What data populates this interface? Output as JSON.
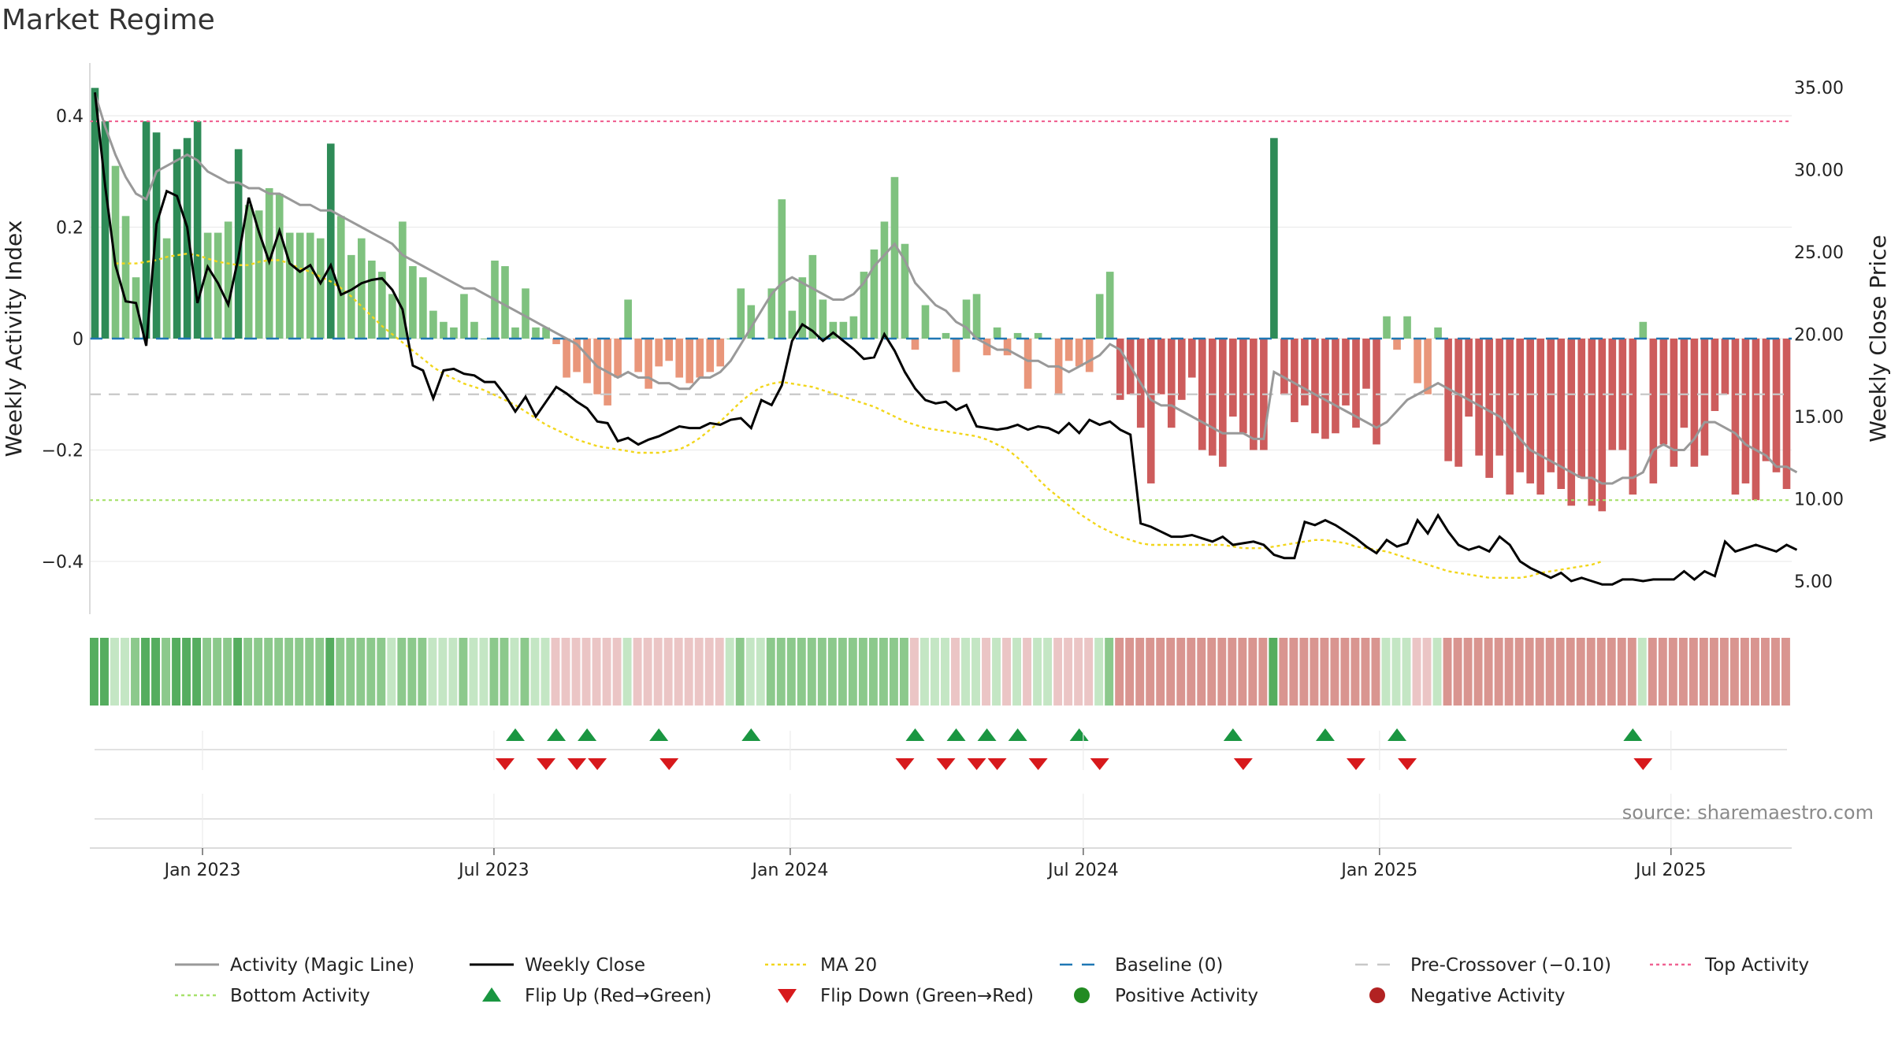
{
  "chart_data": {
    "type": "bar",
    "title": "Market Regime",
    "source": "source: sharemaestro.com",
    "ylabel_left": "Weekly Activity Index",
    "ylabel_right": "Weekly Close Price",
    "x_start": "2022-10-23",
    "x_end": "2025-09-14",
    "x_ticks": [
      {
        "date": "2023-01-01",
        "label": "Jan 2023"
      },
      {
        "date": "2023-07-01",
        "label": "Jul 2023"
      },
      {
        "date": "2024-01-01",
        "label": "Jan 2024"
      },
      {
        "date": "2024-07-01",
        "label": "Jul 2024"
      },
      {
        "date": "2025-01-01",
        "label": "Jan 2025"
      },
      {
        "date": "2025-07-01",
        "label": "Jul 2025"
      }
    ],
    "ylim_left": [
      -0.5,
      0.5
    ],
    "yticks_left": [
      {
        "v": 0.4,
        "label": "0.4"
      },
      {
        "v": 0.2,
        "label": "0.2"
      },
      {
        "v": 0,
        "label": "0"
      },
      {
        "v": -0.2,
        "label": "−0.2"
      },
      {
        "v": -0.4,
        "label": "−0.4"
      }
    ],
    "ylim_right": [
      3.0,
      36.5
    ],
    "yticks_right": [
      {
        "v": 35,
        "label": "35.00"
      },
      {
        "v": 30,
        "label": "30.00"
      },
      {
        "v": 25,
        "label": "25.00"
      },
      {
        "v": 20,
        "label": "20.00"
      },
      {
        "v": 15,
        "label": "15.00"
      },
      {
        "v": 10,
        "label": "10.00"
      },
      {
        "v": 5,
        "label": "5.00"
      }
    ],
    "reference_lines": {
      "baseline": 0,
      "pre_crossover": -0.1,
      "top_activity": 0.39,
      "bottom_activity": -0.29
    },
    "activity_index": [
      0.45,
      0.39,
      0.31,
      0.22,
      0.11,
      0.39,
      0.37,
      0.18,
      0.34,
      0.36,
      0.39,
      0.19,
      0.19,
      0.21,
      0.34,
      0.24,
      0.23,
      0.27,
      0.26,
      0.19,
      0.19,
      0.19,
      0.18,
      0.35,
      0.22,
      0.15,
      0.18,
      0.14,
      0.12,
      0.08,
      0.21,
      0.13,
      0.11,
      0.05,
      0.03,
      0.02,
      0.08,
      0.03,
      0.0,
      0.14,
      0.13,
      0.02,
      0.09,
      0.02,
      0.02,
      -0.01,
      -0.07,
      -0.06,
      -0.08,
      -0.1,
      -0.12,
      -0.07,
      0.07,
      -0.06,
      -0.09,
      -0.05,
      -0.04,
      -0.07,
      -0.08,
      -0.07,
      -0.06,
      -0.05,
      0.0,
      0.09,
      0.06,
      0.0,
      0.09,
      0.25,
      0.05,
      0.11,
      0.15,
      0.07,
      0.03,
      0.03,
      0.04,
      0.12,
      0.16,
      0.21,
      0.29,
      0.17,
      -0.02,
      0.06,
      0.0,
      0.01,
      -0.06,
      0.07,
      0.08,
      -0.03,
      0.02,
      -0.03,
      0.01,
      -0.09,
      0.01,
      0.0,
      -0.1,
      -0.04,
      -0.05,
      -0.06,
      0.08,
      0.12,
      -0.11,
      -0.1,
      -0.16,
      -0.26,
      -0.1,
      -0.16,
      -0.11,
      -0.07,
      -0.2,
      -0.21,
      -0.23,
      -0.14,
      -0.17,
      -0.2,
      -0.2,
      0.36,
      -0.1,
      -0.15,
      -0.12,
      -0.17,
      -0.18,
      -0.17,
      -0.12,
      -0.16,
      -0.09,
      -0.19,
      0.04,
      -0.02,
      0.04,
      -0.08,
      -0.1,
      0.02,
      -0.22,
      -0.23,
      -0.14,
      -0.21,
      -0.25,
      -0.21,
      -0.28,
      -0.24,
      -0.26,
      -0.28,
      -0.24,
      -0.27,
      -0.3,
      -0.25,
      -0.3,
      -0.31,
      -0.2,
      -0.2,
      -0.28,
      0.03,
      -0.26,
      -0.19,
      -0.23,
      -0.16,
      -0.23,
      -0.21,
      -0.13,
      -0.1,
      -0.28,
      -0.26,
      -0.29,
      -0.22,
      -0.24,
      -0.27
    ],
    "magic_line": [
      0.44,
      0.38,
      0.33,
      0.29,
      0.26,
      0.25,
      0.3,
      0.31,
      0.32,
      0.33,
      0.32,
      0.3,
      0.29,
      0.28,
      0.28,
      0.27,
      0.27,
      0.26,
      0.26,
      0.25,
      0.24,
      0.24,
      0.23,
      0.23,
      0.22,
      0.21,
      0.2,
      0.19,
      0.18,
      0.17,
      0.15,
      0.14,
      0.13,
      0.12,
      0.11,
      0.1,
      0.09,
      0.09,
      0.08,
      0.07,
      0.06,
      0.05,
      0.04,
      0.03,
      0.02,
      0.01,
      0.0,
      -0.01,
      -0.03,
      -0.05,
      -0.06,
      -0.07,
      -0.06,
      -0.07,
      -0.07,
      -0.08,
      -0.08,
      -0.09,
      -0.09,
      -0.07,
      -0.07,
      -0.06,
      -0.04,
      -0.01,
      0.02,
      0.05,
      0.08,
      0.1,
      0.11,
      0.1,
      0.09,
      0.08,
      0.07,
      0.07,
      0.08,
      0.1,
      0.13,
      0.15,
      0.17,
      0.14,
      0.1,
      0.08,
      0.06,
      0.05,
      0.03,
      0.02,
      0.0,
      -0.01,
      -0.02,
      -0.02,
      -0.03,
      -0.04,
      -0.04,
      -0.05,
      -0.05,
      -0.06,
      -0.05,
      -0.04,
      -0.03,
      -0.01,
      -0.02,
      -0.05,
      -0.08,
      -0.11,
      -0.12,
      -0.12,
      -0.13,
      -0.14,
      -0.15,
      -0.16,
      -0.17,
      -0.17,
      -0.17,
      -0.18,
      -0.18,
      -0.06,
      -0.07,
      -0.08,
      -0.09,
      -0.1,
      -0.11,
      -0.12,
      -0.13,
      -0.14,
      -0.15,
      -0.16,
      -0.15,
      -0.13,
      -0.11,
      -0.1,
      -0.09,
      -0.08,
      -0.09,
      -0.1,
      -0.11,
      -0.12,
      -0.13,
      -0.14,
      -0.16,
      -0.18,
      -0.2,
      -0.21,
      -0.22,
      -0.23,
      -0.24,
      -0.25,
      -0.25,
      -0.26,
      -0.26,
      -0.25,
      -0.25,
      -0.24,
      -0.2,
      -0.19,
      -0.2,
      -0.2,
      -0.18,
      -0.15,
      -0.15,
      -0.16,
      -0.17,
      -0.19,
      -0.2,
      -0.21,
      -0.23,
      -0.23,
      -0.24
    ],
    "weekly_close": [
      34.7,
      29.0,
      24.2,
      22.0,
      21.9,
      19.3,
      26.7,
      28.7,
      28.4,
      26.5,
      21.9,
      24.1,
      23.1,
      21.8,
      24.7,
      28.3,
      26.2,
      24.4,
      26.3,
      24.3,
      23.8,
      24.2,
      23.1,
      24.2,
      22.4,
      22.7,
      23.1,
      23.3,
      23.4,
      22.7,
      21.5,
      18.1,
      17.8,
      16.1,
      17.8,
      17.9,
      17.6,
      17.5,
      17.1,
      17.1,
      16.3,
      15.3,
      16.2,
      15.0,
      15.9,
      16.8,
      16.4,
      15.9,
      15.5,
      14.7,
      14.6,
      13.5,
      13.7,
      13.3,
      13.6,
      13.8,
      14.1,
      14.4,
      14.3,
      14.3,
      14.6,
      14.5,
      14.8,
      14.9,
      14.3,
      16.0,
      15.7,
      16.9,
      19.6,
      20.6,
      20.2,
      19.6,
      20.1,
      19.6,
      19.1,
      18.5,
      18.6,
      20.0,
      19.0,
      17.7,
      16.7,
      16.0,
      15.8,
      15.9,
      15.4,
      15.7,
      14.4,
      14.3,
      14.2,
      14.3,
      14.5,
      14.2,
      14.4,
      14.3,
      14.0,
      14.6,
      14.0,
      14.8,
      14.5,
      14.7,
      14.2,
      13.9,
      8.5,
      8.3,
      8.0,
      7.7,
      7.7,
      7.8,
      7.6,
      7.4,
      7.7,
      7.2,
      7.3,
      7.4,
      7.2,
      6.6,
      6.4,
      6.4,
      8.6,
      8.4,
      8.7,
      8.4,
      8.0,
      7.6,
      7.1,
      6.7,
      7.5,
      7.1,
      7.3,
      8.7,
      7.9,
      9.0,
      8.0,
      7.2,
      6.9,
      7.1,
      6.8,
      7.7,
      7.2,
      6.2,
      5.8,
      5.5,
      5.2,
      5.5,
      5.0,
      5.2,
      5.0,
      4.8,
      4.8,
      5.1,
      5.1,
      5.0,
      5.1,
      5.1,
      5.1,
      5.6,
      5.1,
      5.6,
      5.3,
      7.4,
      6.8,
      7.0,
      7.2,
      7.0,
      6.8,
      7.2,
      6.9
    ],
    "ma20_start_week": 2,
    "ma20": [
      24.3,
      24.3,
      24.3,
      24.4,
      24.5,
      24.7,
      24.8,
      24.9,
      24.8,
      24.6,
      24.4,
      24.3,
      24.2,
      24.2,
      24.4,
      24.5,
      24.5,
      24.3,
      24.0,
      23.8,
      23.5,
      23.2,
      22.8,
      22.3,
      21.7,
      21.1,
      20.5,
      20.0,
      19.5,
      19.0,
      18.5,
      18.0,
      17.6,
      17.3,
      17.0,
      16.8,
      16.6,
      16.3,
      16.0,
      15.7,
      15.3,
      14.9,
      14.5,
      14.2,
      13.9,
      13.6,
      13.4,
      13.2,
      13.1,
      13.0,
      12.9,
      12.8,
      12.8,
      12.8,
      12.9,
      13.0,
      13.3,
      13.7,
      14.2,
      14.7,
      15.3,
      15.9,
      16.4,
      16.8,
      17.0,
      17.1,
      17.0,
      16.9,
      16.8,
      16.6,
      16.4,
      16.2,
      16.0,
      15.8,
      15.6,
      15.3,
      15.0,
      14.7,
      14.5,
      14.3,
      14.2,
      14.1,
      14.0,
      13.9,
      13.8,
      13.6,
      13.3,
      13.0,
      12.5,
      11.9,
      11.2,
      10.6,
      10.1,
      9.6,
      9.1,
      8.7,
      8.3,
      8.0,
      7.7,
      7.5,
      7.3,
      7.2,
      7.2,
      7.2,
      7.2,
      7.2,
      7.2,
      7.2,
      7.2,
      7.1,
      7.0,
      7.0,
      7.0,
      7.1,
      7.2,
      7.3,
      7.4,
      7.5,
      7.5,
      7.4,
      7.3,
      7.1,
      7.0,
      6.9,
      6.8,
      6.6,
      6.4,
      6.2,
      6.0,
      5.8,
      5.6,
      5.5,
      5.4,
      5.3,
      5.2,
      5.2,
      5.2,
      5.2,
      5.3,
      5.5,
      5.6,
      5.7,
      5.8,
      5.9,
      6.0,
      6.2
    ],
    "regime_week_codes": [
      3,
      3,
      2,
      2,
      1,
      3,
      3,
      1,
      3,
      3,
      3,
      1,
      1,
      1,
      3,
      1,
      1,
      1,
      1,
      1,
      1,
      1,
      1,
      3,
      1,
      1,
      1,
      1,
      1,
      2,
      1,
      1,
      1,
      2,
      2,
      2,
      1,
      2,
      2,
      1,
      1,
      2,
      1,
      2,
      2,
      4,
      4,
      4,
      4,
      4,
      4,
      4,
      2,
      4,
      4,
      4,
      4,
      4,
      4,
      4,
      4,
      4,
      2,
      1,
      2,
      2,
      1,
      1,
      1,
      1,
      1,
      1,
      1,
      1,
      1,
      1,
      1,
      1,
      1,
      1,
      4,
      2,
      2,
      2,
      4,
      2,
      2,
      4,
      2,
      4,
      2,
      4,
      2,
      2,
      4,
      4,
      4,
      4,
      2,
      1,
      5,
      5,
      5,
      5,
      5,
      5,
      5,
      5,
      5,
      5,
      5,
      5,
      5,
      5,
      5,
      3,
      5,
      5,
      5,
      5,
      5,
      5,
      5,
      5,
      5,
      5,
      2,
      2,
      2,
      4,
      4,
      2,
      5,
      5,
      5,
      5,
      5,
      5,
      5,
      5,
      5,
      5,
      5,
      5,
      5,
      5,
      5,
      5,
      5,
      5,
      5,
      2,
      5,
      5,
      5,
      5,
      5,
      5,
      5,
      5,
      5,
      5,
      5,
      5,
      5,
      5
    ],
    "flip_up_weeks": [
      41,
      45,
      48,
      55,
      64,
      80,
      84,
      87,
      90,
      96,
      111,
      120,
      127,
      150
    ],
    "flip_down_weeks": [
      40,
      44,
      47,
      49,
      56,
      79,
      83,
      86,
      88,
      92,
      98,
      112,
      123,
      128,
      151
    ],
    "colors": {
      "dark_green": "#2e8b57",
      "light_green": "#7fc27f",
      "dark_red": "#cd5c5c",
      "light_red": "#e9967a",
      "magic_line": "#999999",
      "weekly_close": "#000000",
      "ma20": "#f2d61b",
      "baseline": "#1f77b4",
      "pre_crossover": "#c8c8c8",
      "top_activity": "#f06292",
      "bottom_activity": "#a6e16b",
      "flip_up": "#1a9641",
      "flip_down": "#d7191c",
      "positive": "#228b22",
      "negative": "#b22222"
    },
    "legend": [
      {
        "label": "Activity (Magic Line)",
        "kind": "line",
        "color": "#999999"
      },
      {
        "label": "Weekly Close",
        "kind": "line",
        "color": "#000000"
      },
      {
        "label": "MA 20",
        "kind": "dot",
        "color": "#f2d61b"
      },
      {
        "label": "Baseline (0)",
        "kind": "dash",
        "color": "#1f77b4"
      },
      {
        "label": "Pre-Crossover (−0.10)",
        "kind": "dash",
        "color": "#c8c8c8"
      },
      {
        "label": "Top Activity",
        "kind": "dot",
        "color": "#f06292"
      },
      {
        "label": "Bottom Activity",
        "kind": "dot",
        "color": "#a6e16b"
      },
      {
        "label": "Flip Up (Red→Green)",
        "kind": "tri-up",
        "color": "#1a9641"
      },
      {
        "label": "Flip Down (Green→Red)",
        "kind": "tri-down",
        "color": "#d7191c"
      },
      {
        "label": "Positive Activity",
        "kind": "circle",
        "color": "#228b22"
      },
      {
        "label": "Negative Activity",
        "kind": "circle",
        "color": "#b22222"
      }
    ]
  }
}
